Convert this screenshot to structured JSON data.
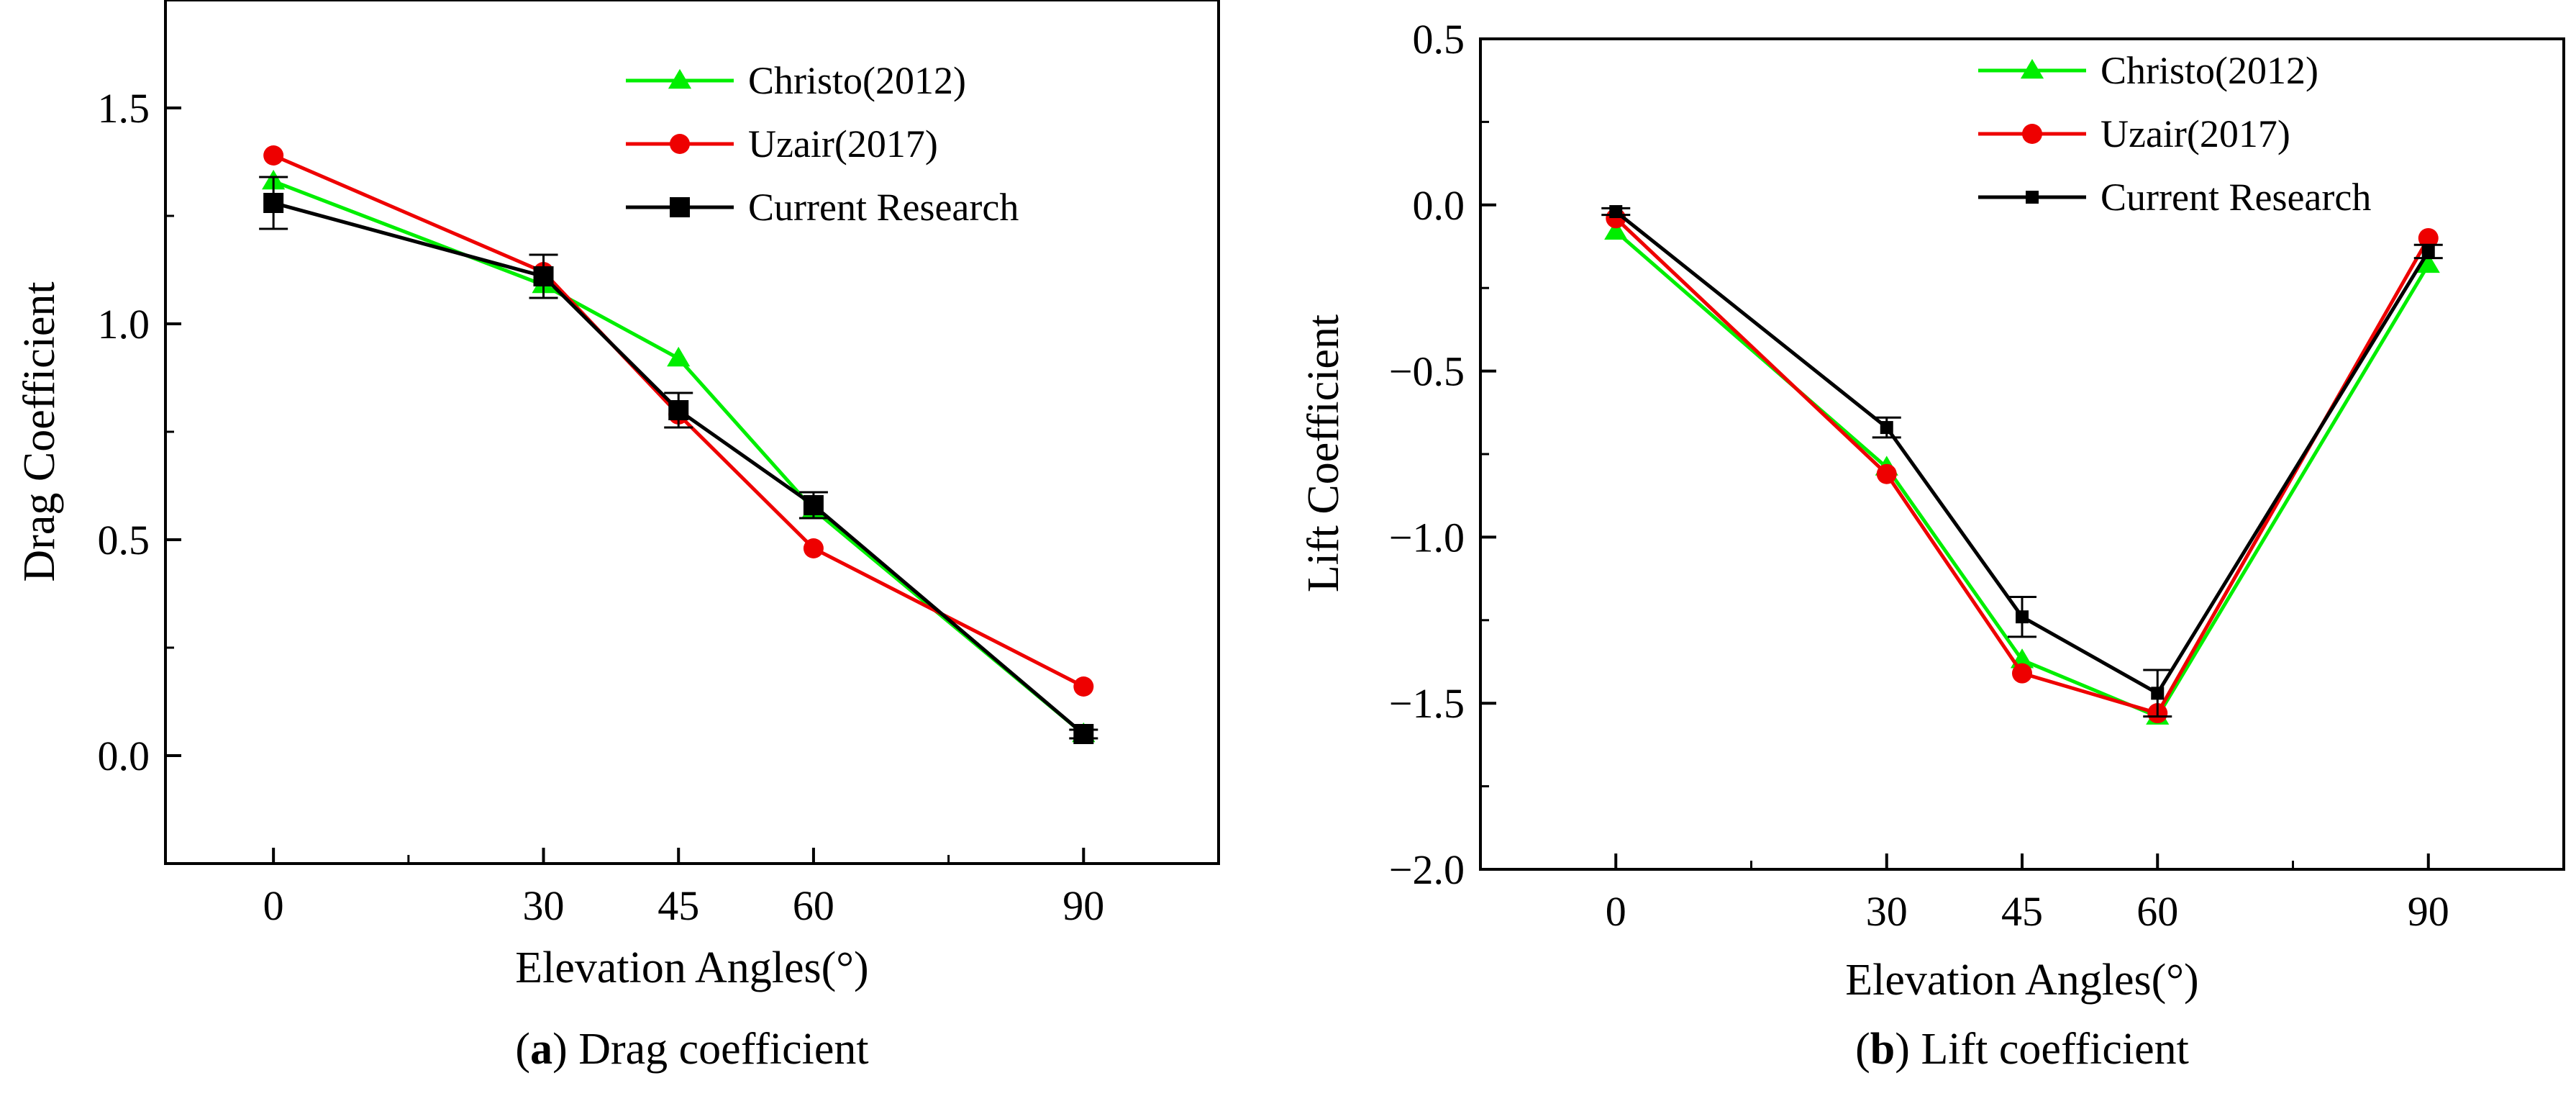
{
  "chart_data": [
    {
      "id": "a",
      "type": "line",
      "caption_letter": "a",
      "caption_open": "(",
      "caption_close": ")",
      "caption_text": " Drag coefficient",
      "xlabel": "Elevation Angles(°)",
      "ylabel": "Drag Coefficient",
      "x": [
        0,
        30,
        45,
        60,
        90
      ],
      "xlim": [
        -12,
        105
      ],
      "ylim": [
        -0.25,
        1.75
      ],
      "yticks": [
        0.0,
        0.5,
        1.0,
        1.5
      ],
      "ytick_labels": [
        "0.0",
        "0.5",
        "1.0",
        "1.5"
      ],
      "xticks": [
        0,
        30,
        45,
        60,
        90
      ],
      "xtick_labels": [
        "0",
        "30",
        "45",
        "60",
        "90"
      ],
      "legend_position": "top-right",
      "series": [
        {
          "name": "Christo(2012)",
          "color": "#00ee00",
          "marker": "triangle",
          "values": [
            1.33,
            1.09,
            0.92,
            0.57,
            0.05
          ]
        },
        {
          "name": "Uzair(2017)",
          "color": "#ee0000",
          "marker": "circle",
          "values": [
            1.39,
            1.12,
            0.79,
            0.48,
            0.16
          ]
        },
        {
          "name": "Current Research",
          "color": "#000000",
          "marker": "square",
          "values": [
            1.28,
            1.11,
            0.8,
            0.58,
            0.05
          ],
          "errors": [
            0.06,
            0.05,
            0.04,
            0.03,
            0.01
          ]
        }
      ]
    },
    {
      "id": "b",
      "type": "line",
      "caption_letter": "b",
      "caption_open": "(",
      "caption_close": ")",
      "caption_text": " Lift coefficient",
      "xlabel": "Elevation Angles(°)",
      "ylabel": "Lift Coefficient",
      "x": [
        0,
        30,
        45,
        60,
        90
      ],
      "xlim": [
        -15,
        105
      ],
      "ylim": [
        -2.0,
        0.5
      ],
      "yticks": [
        -2.0,
        -1.5,
        -1.0,
        -0.5,
        0.0,
        0.5
      ],
      "ytick_labels": [
        "−2.0",
        "−1.5",
        "−1.0",
        "−0.5",
        "0.0",
        "0.5"
      ],
      "xticks": [
        0,
        30,
        45,
        60,
        90
      ],
      "xtick_labels": [
        "0",
        "30",
        "45",
        "60",
        "90"
      ],
      "legend_position": "top-right",
      "series": [
        {
          "name": "Christo(2012)",
          "color": "#00ee00",
          "marker": "triangle",
          "values": [
            -0.08,
            -0.79,
            -1.37,
            -1.54,
            -0.18
          ]
        },
        {
          "name": "Uzair(2017)",
          "color": "#ee0000",
          "marker": "circle",
          "values": [
            -0.04,
            -0.81,
            -1.41,
            -1.53,
            -0.1
          ]
        },
        {
          "name": "Current Research",
          "color": "#000000",
          "marker": "square",
          "values": [
            -0.02,
            -0.67,
            -1.24,
            -1.47,
            -0.14
          ],
          "errors": [
            0.01,
            0.03,
            0.06,
            0.07,
            0.02
          ]
        }
      ]
    }
  ]
}
